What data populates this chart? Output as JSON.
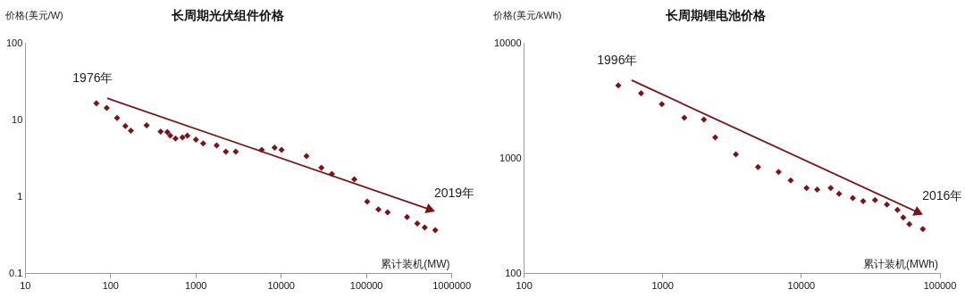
{
  "chart_data": [
    {
      "type": "scatter",
      "title": "长周期光伏组件价格",
      "ylabel": "价格(美元/W)",
      "xlabel": "累计装机(MW)",
      "log": "xy",
      "grid": false,
      "xlim": [
        10,
        1000000
      ],
      "ylim": [
        0.1,
        100
      ],
      "xticks": [
        10,
        100,
        1000,
        10000,
        100000,
        1000000
      ],
      "yticks": [
        0.1,
        1,
        10,
        100
      ],
      "annotations": [
        "1976年",
        "2019年"
      ],
      "series": [
        {
          "marker": "diamond",
          "color": "#7b1416",
          "x": [
            68,
            90,
            119,
            149,
            173,
            264,
            386,
            462,
            500,
            577,
            695,
            794,
            1000,
            1216,
            1750,
            2245,
            2930,
            5920,
            8370,
            10100,
            19800,
            29600,
            39300,
            72000,
            102000,
            138000,
            177000,
            299000,
            394000,
            482000,
            641000
          ],
          "values": [
            16.7,
            14.5,
            10.7,
            8.4,
            7.3,
            8.6,
            7.1,
            7.0,
            6.3,
            5.8,
            6.0,
            6.3,
            5.6,
            5.0,
            4.7,
            3.9,
            3.9,
            4.1,
            4.4,
            4.1,
            3.4,
            2.4,
            2.0,
            1.7,
            0.87,
            0.69,
            0.63,
            0.55,
            0.45,
            0.4,
            0.37
          ]
        },
        {
          "type": "line",
          "color": "#7b1416",
          "x": [
            91,
            546000
          ],
          "values": [
            19.4,
            0.69
          ]
        }
      ]
    },
    {
      "type": "scatter",
      "title": "长周期锂电池价格",
      "ylabel": "价格(美元/kWh)",
      "xlabel": "累计装机(MWh)",
      "log": "xy",
      "grid": false,
      "xlim": [
        100,
        100000
      ],
      "ylim": [
        100,
        10000
      ],
      "xticks": [
        100,
        1000,
        10000,
        100000
      ],
      "yticks": [
        100,
        1000,
        10000
      ],
      "annotations": [
        "1996年",
        "2016年"
      ],
      "series": [
        {
          "marker": "diamond",
          "color": "#7b1416",
          "x": [
            478,
            698,
            986,
            1430,
            1980,
            2390,
            3370,
            4870,
            6850,
            8380,
            10900,
            13000,
            16300,
            18700,
            23500,
            27900,
            34000,
            41400,
            49300,
            54300,
            60100,
            75200
          ],
          "values": [
            4330,
            3700,
            2970,
            2260,
            2190,
            1530,
            1090,
            844,
            765,
            646,
            556,
            538,
            556,
            495,
            455,
            426,
            437,
            399,
            358,
            308,
            270,
            244
          ]
        },
        {
          "type": "line",
          "color": "#7b1416",
          "x": [
            596,
            68700
          ],
          "values": [
            4800,
            343
          ]
        }
      ]
    }
  ]
}
